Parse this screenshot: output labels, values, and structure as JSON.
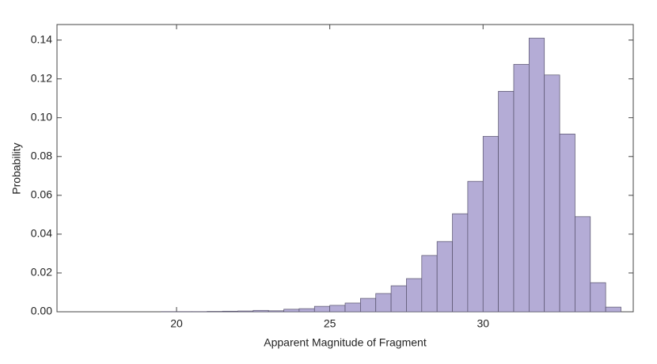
{
  "chart_data": {
    "type": "histogram",
    "x_label": "Apparent Magnitude of Fragment",
    "y_label": "Probability",
    "bins": [
      19.5,
      20,
      20.5,
      21,
      21.5,
      22,
      22.5,
      23,
      23.5,
      24,
      24.5,
      25,
      25.5,
      26,
      26.5,
      27,
      27.5,
      28,
      28.5,
      29,
      29.5,
      30,
      30.5,
      31,
      31.5,
      32,
      32.5,
      33,
      33.5,
      34,
      34.5
    ],
    "values": [
      0.0001,
      0.0001,
      0.0001,
      0.0002,
      0.0003,
      0.0004,
      0.0007,
      0.0005,
      0.0013,
      0.0016,
      0.0028,
      0.0033,
      0.0045,
      0.0069,
      0.0094,
      0.0134,
      0.0171,
      0.029,
      0.0362,
      0.0505,
      0.0672,
      0.0904,
      0.1136,
      0.1275,
      0.141,
      0.122,
      0.0916,
      0.049,
      0.015,
      0.0024
    ],
    "color": "#b4acd6",
    "xlim": [
      16.1,
      34.9
    ],
    "ylim": [
      0,
      0.148
    ],
    "xticks": [
      20,
      25,
      30
    ],
    "yticks": [
      {
        "value": 0,
        "label": "0.00"
      },
      0.02,
      0.04,
      0.06,
      0.08,
      {
        "value": 0.1,
        "label": "0.10"
      },
      0.12,
      0.14
    ],
    "grid": false
  }
}
